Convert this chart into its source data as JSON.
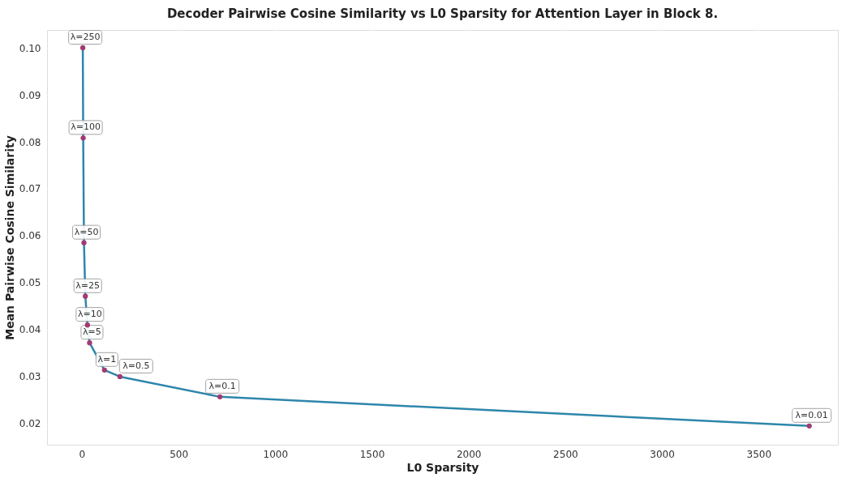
{
  "chart_data": {
    "type": "line",
    "title": "Decoder Pairwise Cosine Similarity vs L0 Sparsity for Attention Layer in Block 8.",
    "xlabel": "L0 Sparsity",
    "ylabel": "Mean Pairwise Cosine Similarity",
    "x": [
      5,
      7,
      11,
      18,
      29,
      40,
      117,
      197,
      714,
      3762
    ],
    "series": [
      {
        "color": "#2e86ab",
        "colors": [
          "#a23b72",
          "#a23b72",
          "#a23b72",
          "#a23b72",
          "#a23b72",
          "#a23b72",
          "#a23b72",
          "#a23b72",
          "#a23b72",
          "#a23b72"
        ],
        "values": [
          0.1,
          0.0808,
          0.0585,
          0.0471,
          0.041,
          0.0372,
          0.0314,
          0.03,
          0.0257,
          0.0195
        ]
      }
    ],
    "annotations": [
      {
        "text": "λ=250",
        "x": 5,
        "y": 0.1
      },
      {
        "text": "λ=100",
        "x": 7,
        "y": 0.0808
      },
      {
        "text": "λ=50",
        "x": 11,
        "y": 0.0585
      },
      {
        "text": "λ=25",
        "x": 18,
        "y": 0.0471
      },
      {
        "text": "λ=10",
        "x": 29,
        "y": 0.041
      },
      {
        "text": "λ=5",
        "x": 40,
        "y": 0.0372
      },
      {
        "text": "λ=1",
        "x": 117,
        "y": 0.0314
      },
      {
        "text": "λ=0.5",
        "x": 197,
        "y": 0.03
      },
      {
        "text": "λ=0.1",
        "x": 714,
        "y": 0.0257
      },
      {
        "text": "λ=0.01",
        "x": 3762,
        "y": 0.0195
      }
    ],
    "xlim": [
      -180,
      3910
    ],
    "ylim": [
      0.0155,
      0.1038
    ],
    "xticks": [
      0,
      500,
      1000,
      1500,
      2000,
      2500,
      3000,
      3500
    ],
    "yticks": [
      {
        "value": 0.02,
        "label": "0.02"
      },
      {
        "value": 0.03,
        "label": "0.03"
      },
      {
        "value": 0.04,
        "label": "0.04"
      },
      {
        "value": 0.05,
        "label": "0.05"
      },
      {
        "value": 0.06,
        "label": "0.06"
      },
      {
        "value": 0.07,
        "label": "0.07"
      },
      {
        "value": 0.08,
        "label": "0.08"
      },
      {
        "value": 0.09,
        "label": "0.09"
      },
      {
        "value": 0.1,
        "label": "0.10"
      }
    ],
    "grid": true,
    "marker": "circle",
    "line_style": "solid"
  }
}
